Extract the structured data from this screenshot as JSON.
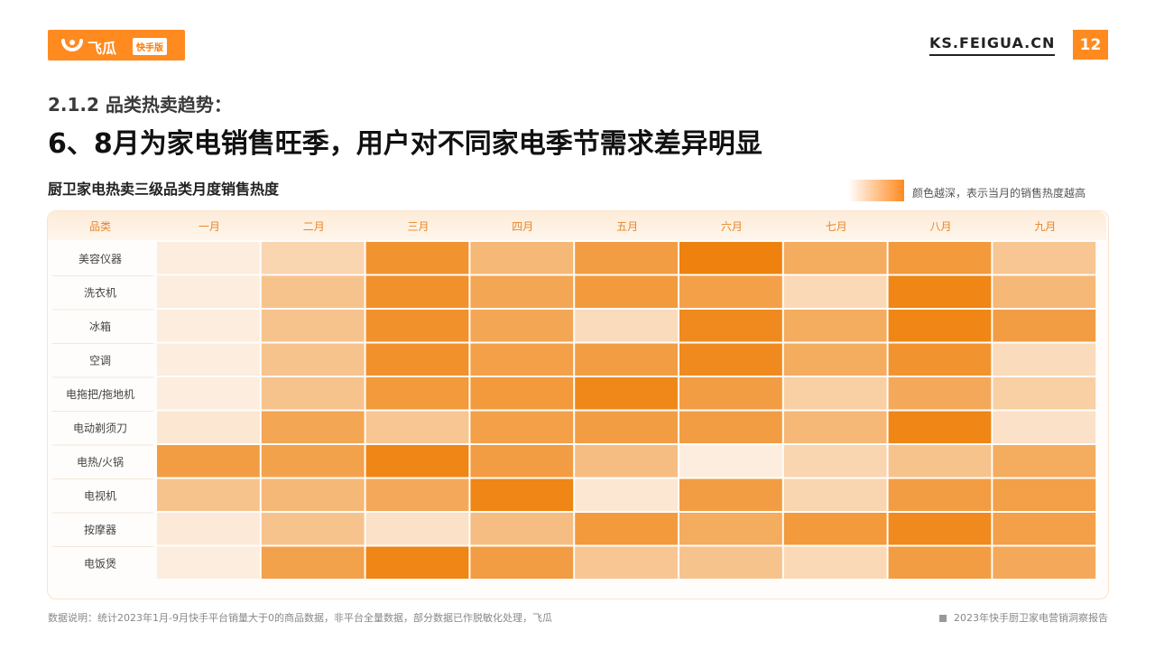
{
  "brand": {
    "logo_text": "飞瓜",
    "logo_badge": "快手版",
    "site": "KS.FEIGUA.CN",
    "page_number": "12"
  },
  "heading": {
    "subtitle": "2.1.2 品类热卖趋势：",
    "headline": "6、8月为家电销售旺季，用户对不同家电季节需求差异明显"
  },
  "chart_title": "厨卫家电热卖三级品类月度销售热度",
  "legend_text": "颜色越深，表示当月的销售热度越高",
  "colors": {
    "accent": "#ff8a1f",
    "scale_low": "#fdf3ea",
    "scale_high": "#ee7c02"
  },
  "chart_data": {
    "type": "heatmap",
    "row_header": "品类",
    "columns": [
      "一月",
      "二月",
      "三月",
      "四月",
      "五月",
      "六月",
      "七月",
      "八月",
      "九月"
    ],
    "rows": [
      "美容仪器",
      "洗衣机",
      "冰箱",
      "空调",
      "电拖把/拖地机",
      "电动剃须刀",
      "电热/火锅",
      "电视机",
      "按摩器",
      "电饭煲"
    ],
    "values": [
      [
        0.05,
        0.25,
        0.8,
        0.5,
        0.72,
        0.95,
        0.6,
        0.75,
        0.38
      ],
      [
        0.05,
        0.4,
        0.82,
        0.65,
        0.75,
        0.7,
        0.22,
        0.92,
        0.5
      ],
      [
        0.05,
        0.4,
        0.82,
        0.65,
        0.2,
        0.88,
        0.6,
        0.92,
        0.72
      ],
      [
        0.05,
        0.4,
        0.82,
        0.7,
        0.72,
        0.88,
        0.6,
        0.8,
        0.2
      ],
      [
        0.05,
        0.4,
        0.75,
        0.75,
        0.9,
        0.72,
        0.3,
        0.62,
        0.3
      ],
      [
        0.1,
        0.65,
        0.38,
        0.7,
        0.72,
        0.72,
        0.5,
        0.92,
        0.15
      ],
      [
        0.72,
        0.68,
        0.92,
        0.72,
        0.45,
        0.05,
        0.25,
        0.4,
        0.6
      ],
      [
        0.4,
        0.5,
        0.62,
        0.92,
        0.1,
        0.72,
        0.25,
        0.72,
        0.7
      ],
      [
        0.08,
        0.4,
        0.15,
        0.45,
        0.75,
        0.6,
        0.75,
        0.88,
        0.7
      ],
      [
        0.05,
        0.68,
        0.92,
        0.72,
        0.38,
        0.4,
        0.22,
        0.72,
        0.62
      ]
    ]
  },
  "footnote": "数据说明：统计2023年1月-9月快手平台销量大于0的商品数据，非平台全量数据，部分数据已作脱敏化处理，飞瓜",
  "report_name": "2023年快手厨卫家电营销洞察报告"
}
